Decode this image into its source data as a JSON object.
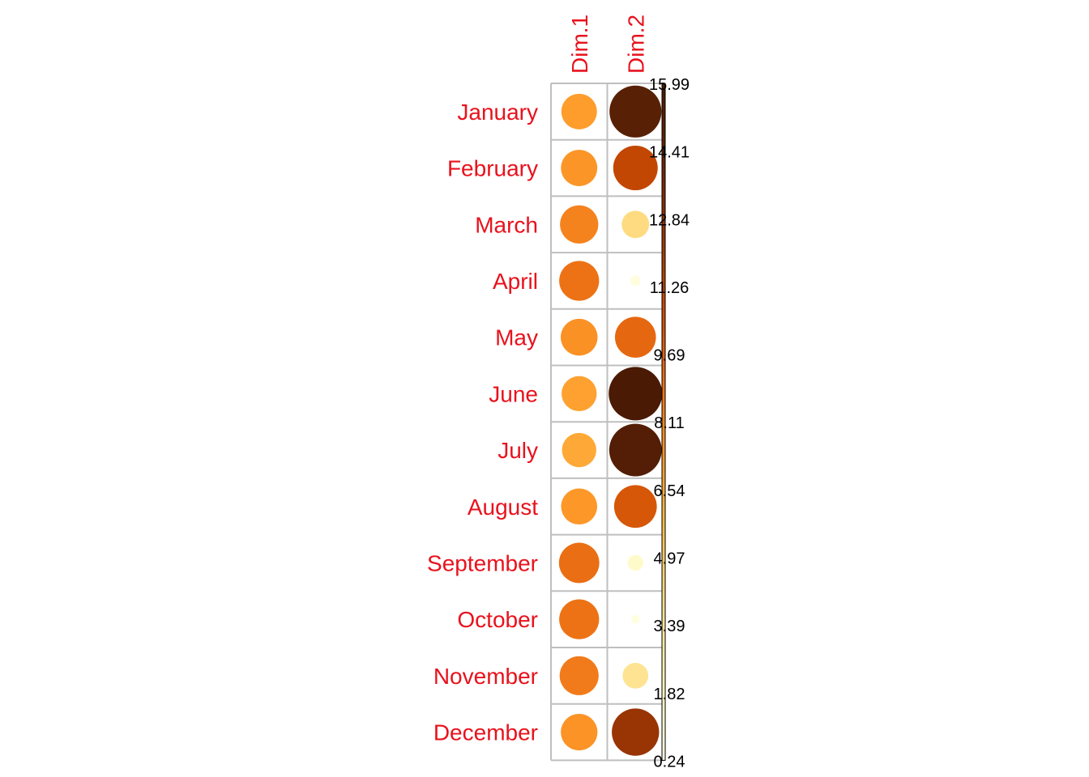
{
  "chart_data": {
    "type": "heatmap",
    "title": "",
    "columns": [
      "Dim.1",
      "Dim.2"
    ],
    "rows": [
      "January",
      "February",
      "March",
      "April",
      "May",
      "June",
      "July",
      "August",
      "September",
      "October",
      "November",
      "December"
    ],
    "values": [
      [
        7.1,
        15.1
      ],
      [
        7.4,
        11.1
      ],
      [
        8.2,
        4.2
      ],
      [
        8.9,
        0.6
      ],
      [
        7.6,
        9.4
      ],
      [
        6.9,
        16.0
      ],
      [
        6.6,
        15.4
      ],
      [
        7.3,
        10.2
      ],
      [
        9.1,
        1.4
      ],
      [
        8.9,
        0.4
      ],
      [
        8.5,
        3.7
      ],
      [
        7.5,
        12.5
      ]
    ],
    "value_range": [
      0.24,
      15.99
    ],
    "legend": {
      "ticks": [
        "15.99",
        "14.41",
        "12.84",
        "11.26",
        "9.69",
        "8.11",
        "6.54",
        "4.97",
        "3.39",
        "1.82",
        "0.24"
      ],
      "placement": "right"
    },
    "colors": {
      "label": "#e8121c",
      "grid": "#bfbfbf",
      "scale": [
        "#ffffe5",
        "#fff7bc",
        "#fee391",
        "#fec44f",
        "#fe9929",
        "#ec7014",
        "#cc4c02",
        "#993404",
        "#662506",
        "#4a1a04"
      ]
    }
  }
}
